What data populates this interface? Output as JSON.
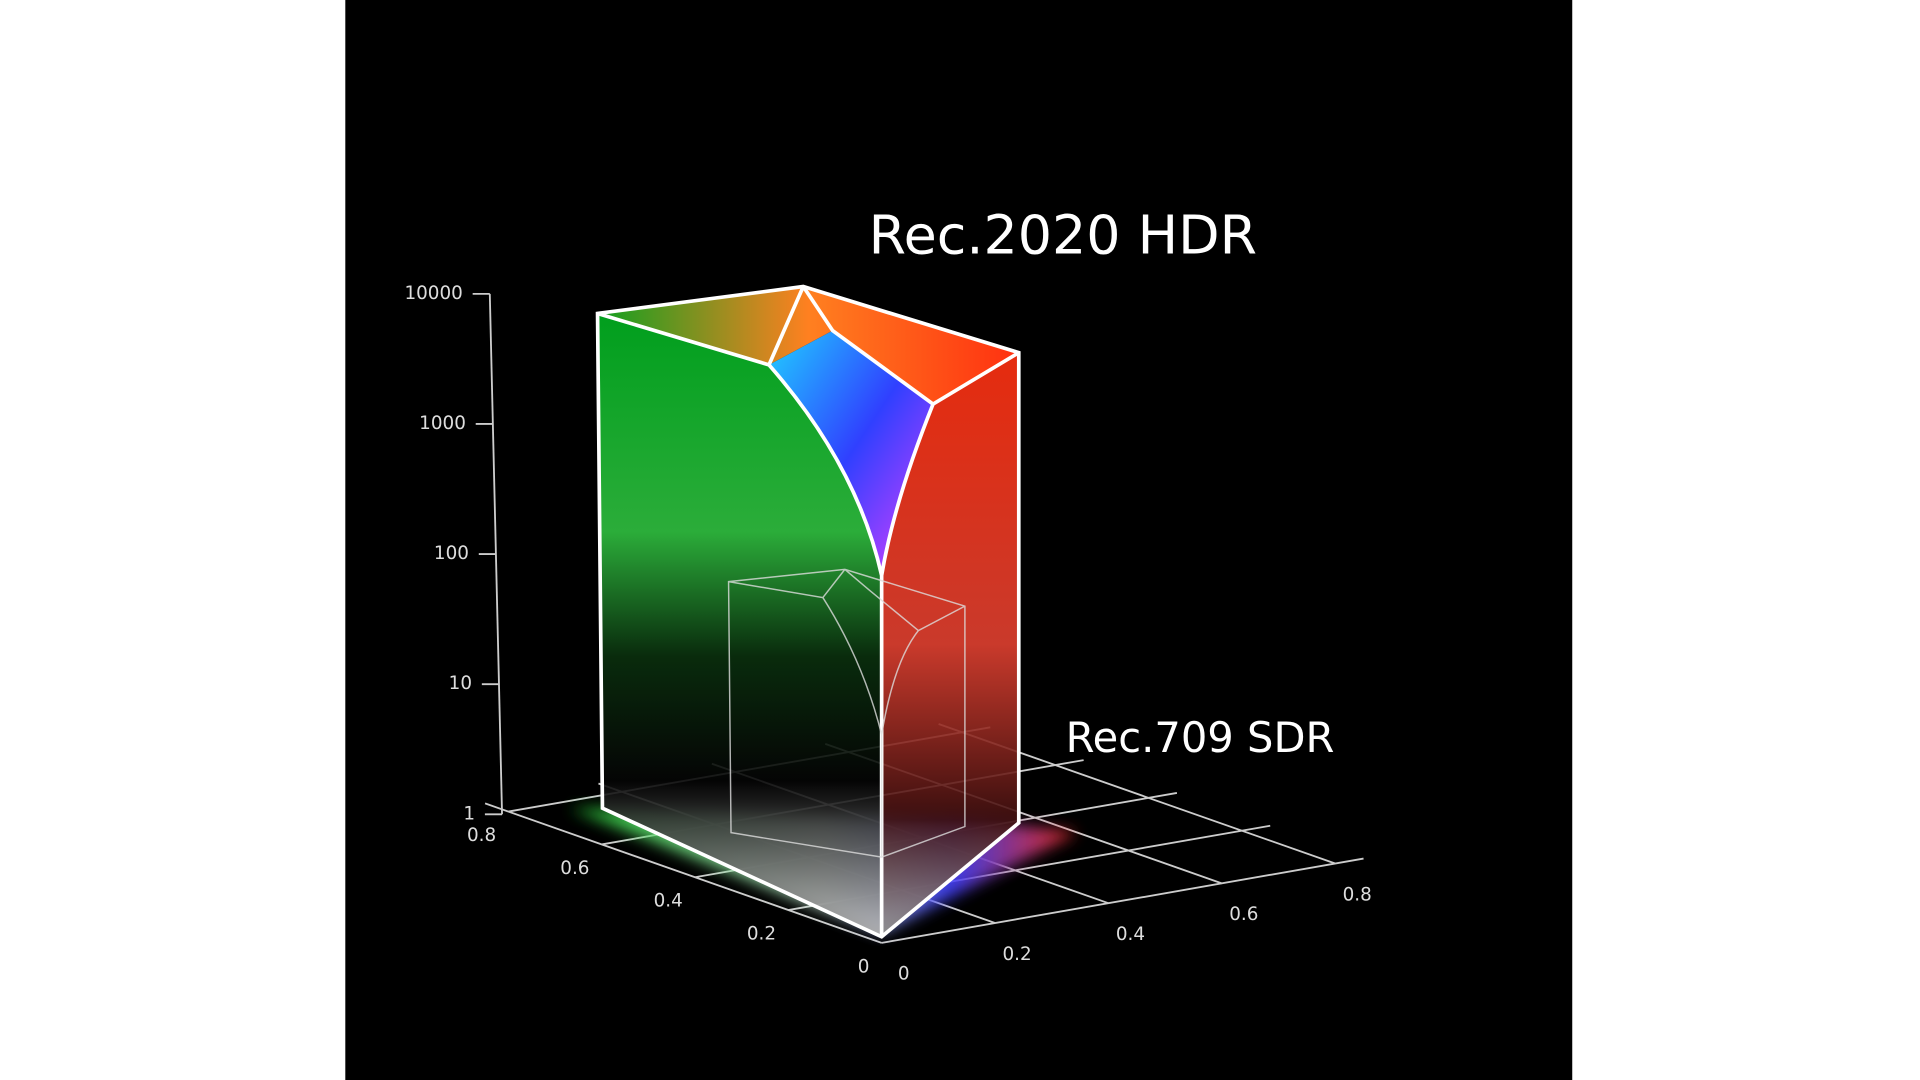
{
  "chart_data": {
    "type": "volume",
    "annotations": [
      "Rec.2020 HDR",
      "Rec.709 SDR"
    ],
    "zlim": [
      1,
      10000
    ],
    "zscale": "log",
    "zticks": [
      1,
      10,
      100,
      1000,
      10000
    ],
    "xlim": [
      0,
      0.85
    ],
    "xticks": [
      0,
      0.2,
      0.4,
      0.6,
      0.8
    ],
    "ylim": [
      0,
      0.85
    ],
    "yticks": [
      0,
      0.2,
      0.4,
      0.6,
      0.8
    ],
    "grid": true
  }
}
